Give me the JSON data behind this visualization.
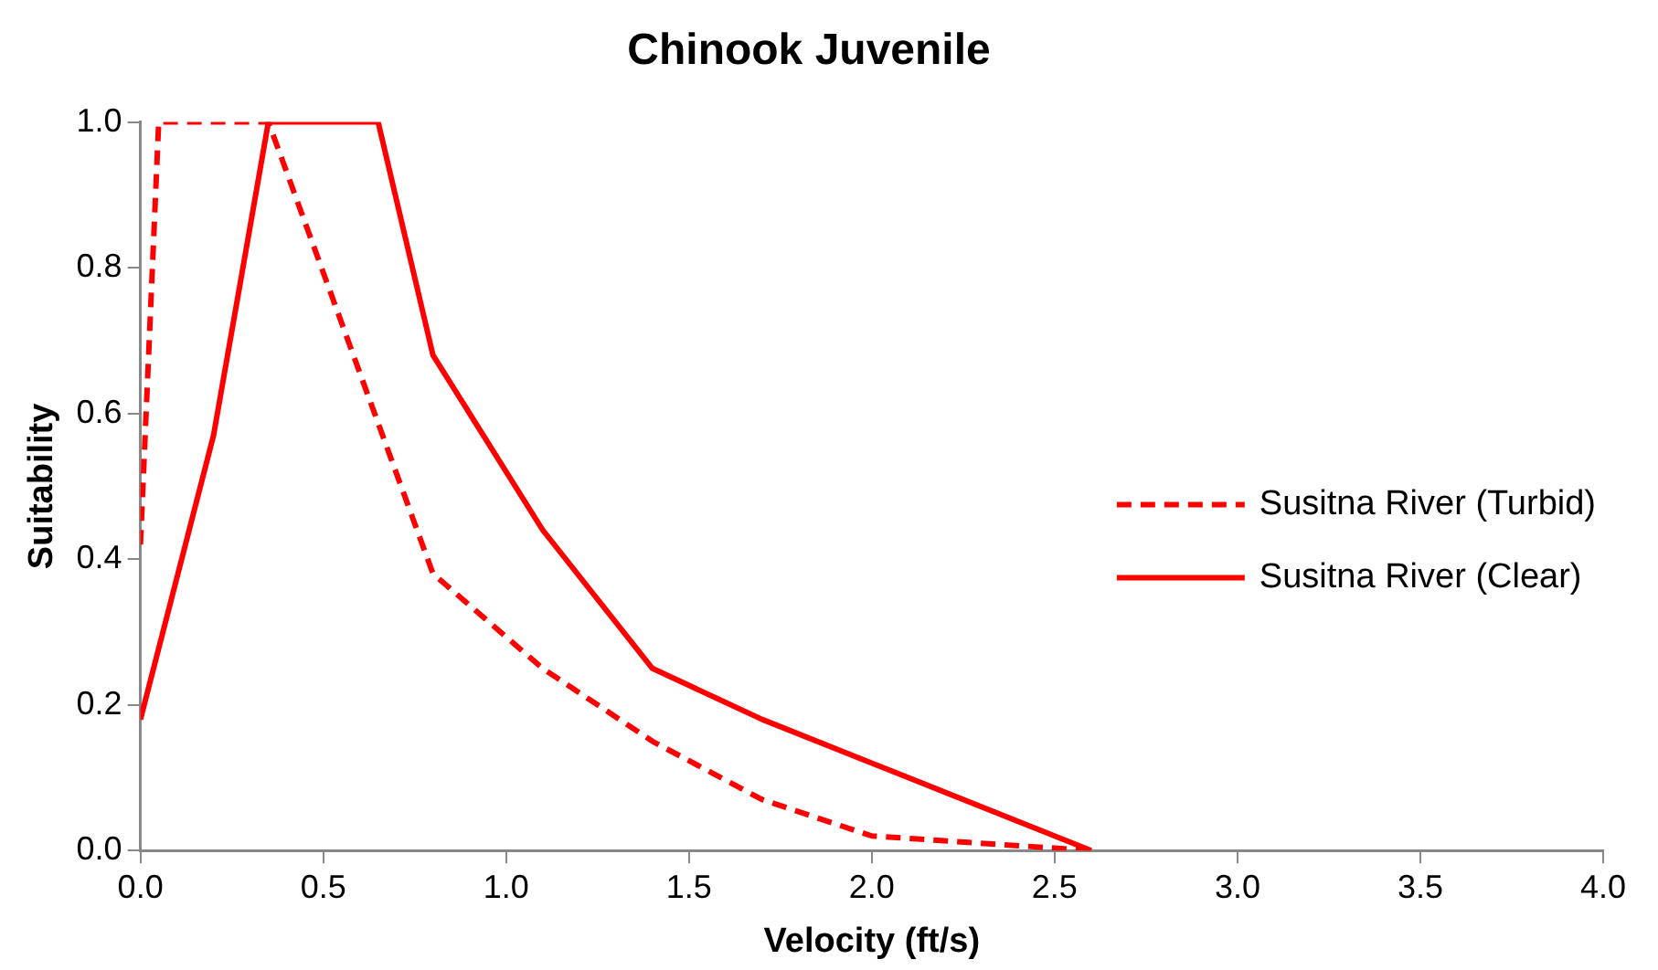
{
  "chart_data": {
    "type": "line",
    "title": "Chinook Juvenile",
    "xlabel": "Velocity (ft/s)",
    "ylabel": "Suitability",
    "series": [
      {
        "name": "Susitna River (Turbid)",
        "color": "#ff0000",
        "line_style": "dashed",
        "x": [
          0,
          0.05,
          0.35,
          0.8,
          1.1,
          1.4,
          1.7,
          2.0,
          2.6
        ],
        "values": [
          0.42,
          1.0,
          1.0,
          0.38,
          0.25,
          0.15,
          0.07,
          0.02,
          0
        ]
      },
      {
        "name": "Susitna River (Clear)",
        "color": "#ff0000",
        "line_style": "solid",
        "x": [
          0,
          0.2,
          0.35,
          0.65,
          0.8,
          1.1,
          1.4,
          1.7,
          2.0,
          2.6
        ],
        "values": [
          0.18,
          0.57,
          1.0,
          1.0,
          0.68,
          0.44,
          0.25,
          0.18,
          0.12,
          0
        ]
      }
    ],
    "xlim": [
      0,
      4
    ],
    "xticks": [
      {
        "value": 0,
        "label": "0.0"
      },
      {
        "value": 0.5,
        "label": "0.5"
      },
      {
        "value": 1,
        "label": "1.0"
      },
      {
        "value": 1.5,
        "label": "1.5"
      },
      {
        "value": 2,
        "label": "2.0"
      },
      {
        "value": 2.5,
        "label": "2.5"
      },
      {
        "value": 3,
        "label": "3.0"
      },
      {
        "value": 3.5,
        "label": "3.5"
      },
      {
        "value": 4,
        "label": "4.0"
      }
    ],
    "ylim": [
      0,
      1
    ],
    "yticks": [
      {
        "value": 0,
        "label": "0.0"
      },
      {
        "value": 0.2,
        "label": "0.2"
      },
      {
        "value": 0.4,
        "label": "0.4"
      },
      {
        "value": 0.6,
        "label": "0.6"
      },
      {
        "value": 0.8,
        "label": "0.8"
      },
      {
        "value": 1,
        "label": "1.0"
      }
    ],
    "grid": false,
    "legend": "right",
    "marker": "none"
  }
}
